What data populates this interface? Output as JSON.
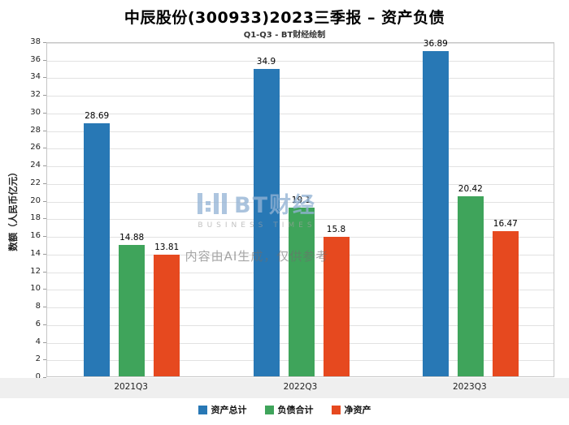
{
  "title": "中辰股份(300933)2023三季报 – 资产负债",
  "subtitle": "Q1-Q3 - BT财经绘制",
  "watermark": {
    "brand": "BT财经",
    "brand_sub": "BUSINESS TIMES",
    "note": "内容由AI生成，仅供参考"
  },
  "chart_data": {
    "type": "bar",
    "title": "中辰股份(300933)2023三季报 – 资产负债",
    "subtitle": "Q1-Q3 - BT财经绘制",
    "categories": [
      "2021Q3",
      "2022Q3",
      "2023Q3"
    ],
    "series": [
      {
        "name": "资产总计",
        "color": "#2878b5",
        "values": [
          28.69,
          34.9,
          36.89
        ]
      },
      {
        "name": "负债合计",
        "color": "#3fa45b",
        "values": [
          14.88,
          19.1,
          20.42
        ]
      },
      {
        "name": "净资产",
        "color": "#e6491f",
        "values": [
          13.81,
          15.8,
          16.47
        ]
      }
    ],
    "xlabel": "",
    "ylabel": "数额（人民币亿元）",
    "ylim": [
      0,
      38
    ],
    "ytick_step": 2,
    "grid": true,
    "legend_position": "bottom"
  }
}
